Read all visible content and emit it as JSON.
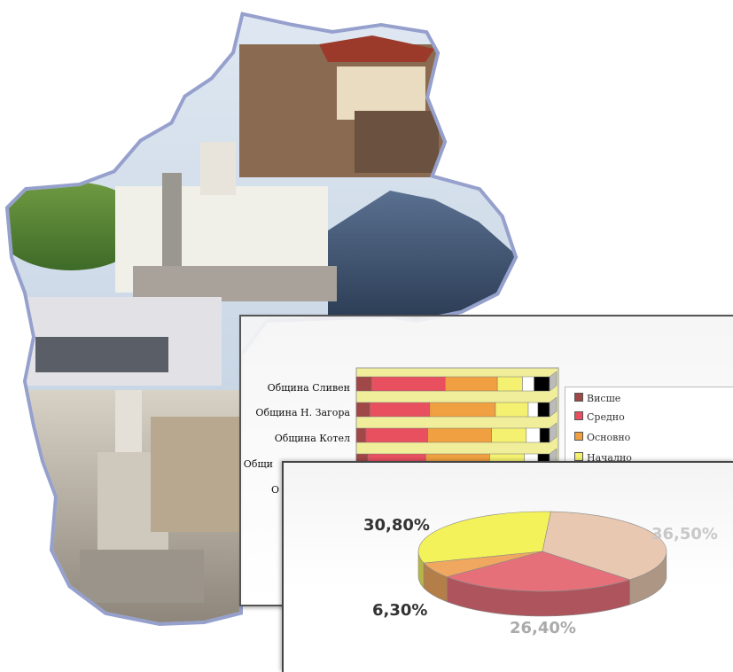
{
  "bar_chart": {
    "rows": [
      {
        "label": "Община Сливен"
      },
      {
        "label": "Община Н. Загора"
      },
      {
        "label": "Община Котел"
      },
      {
        "label": "Общи"
      },
      {
        "label": "О"
      }
    ],
    "legend": [
      {
        "label": "Висше",
        "color": "#a04848"
      },
      {
        "label": "Средно",
        "color": "#e85060"
      },
      {
        "label": "Основно",
        "color": "#f0a040"
      },
      {
        "label": "Начално",
        "color": "#f4f070"
      }
    ]
  },
  "chart_data": {
    "type": "pie",
    "title": "",
    "labels": [
      "30,80%",
      "36,50%",
      "26,40%",
      "6,30%"
    ],
    "values": [
      30.8,
      36.5,
      26.4,
      6.3
    ],
    "colors": [
      "#f4f25a",
      "#e8c8b0",
      "#e6707a",
      "#f0a860"
    ]
  }
}
